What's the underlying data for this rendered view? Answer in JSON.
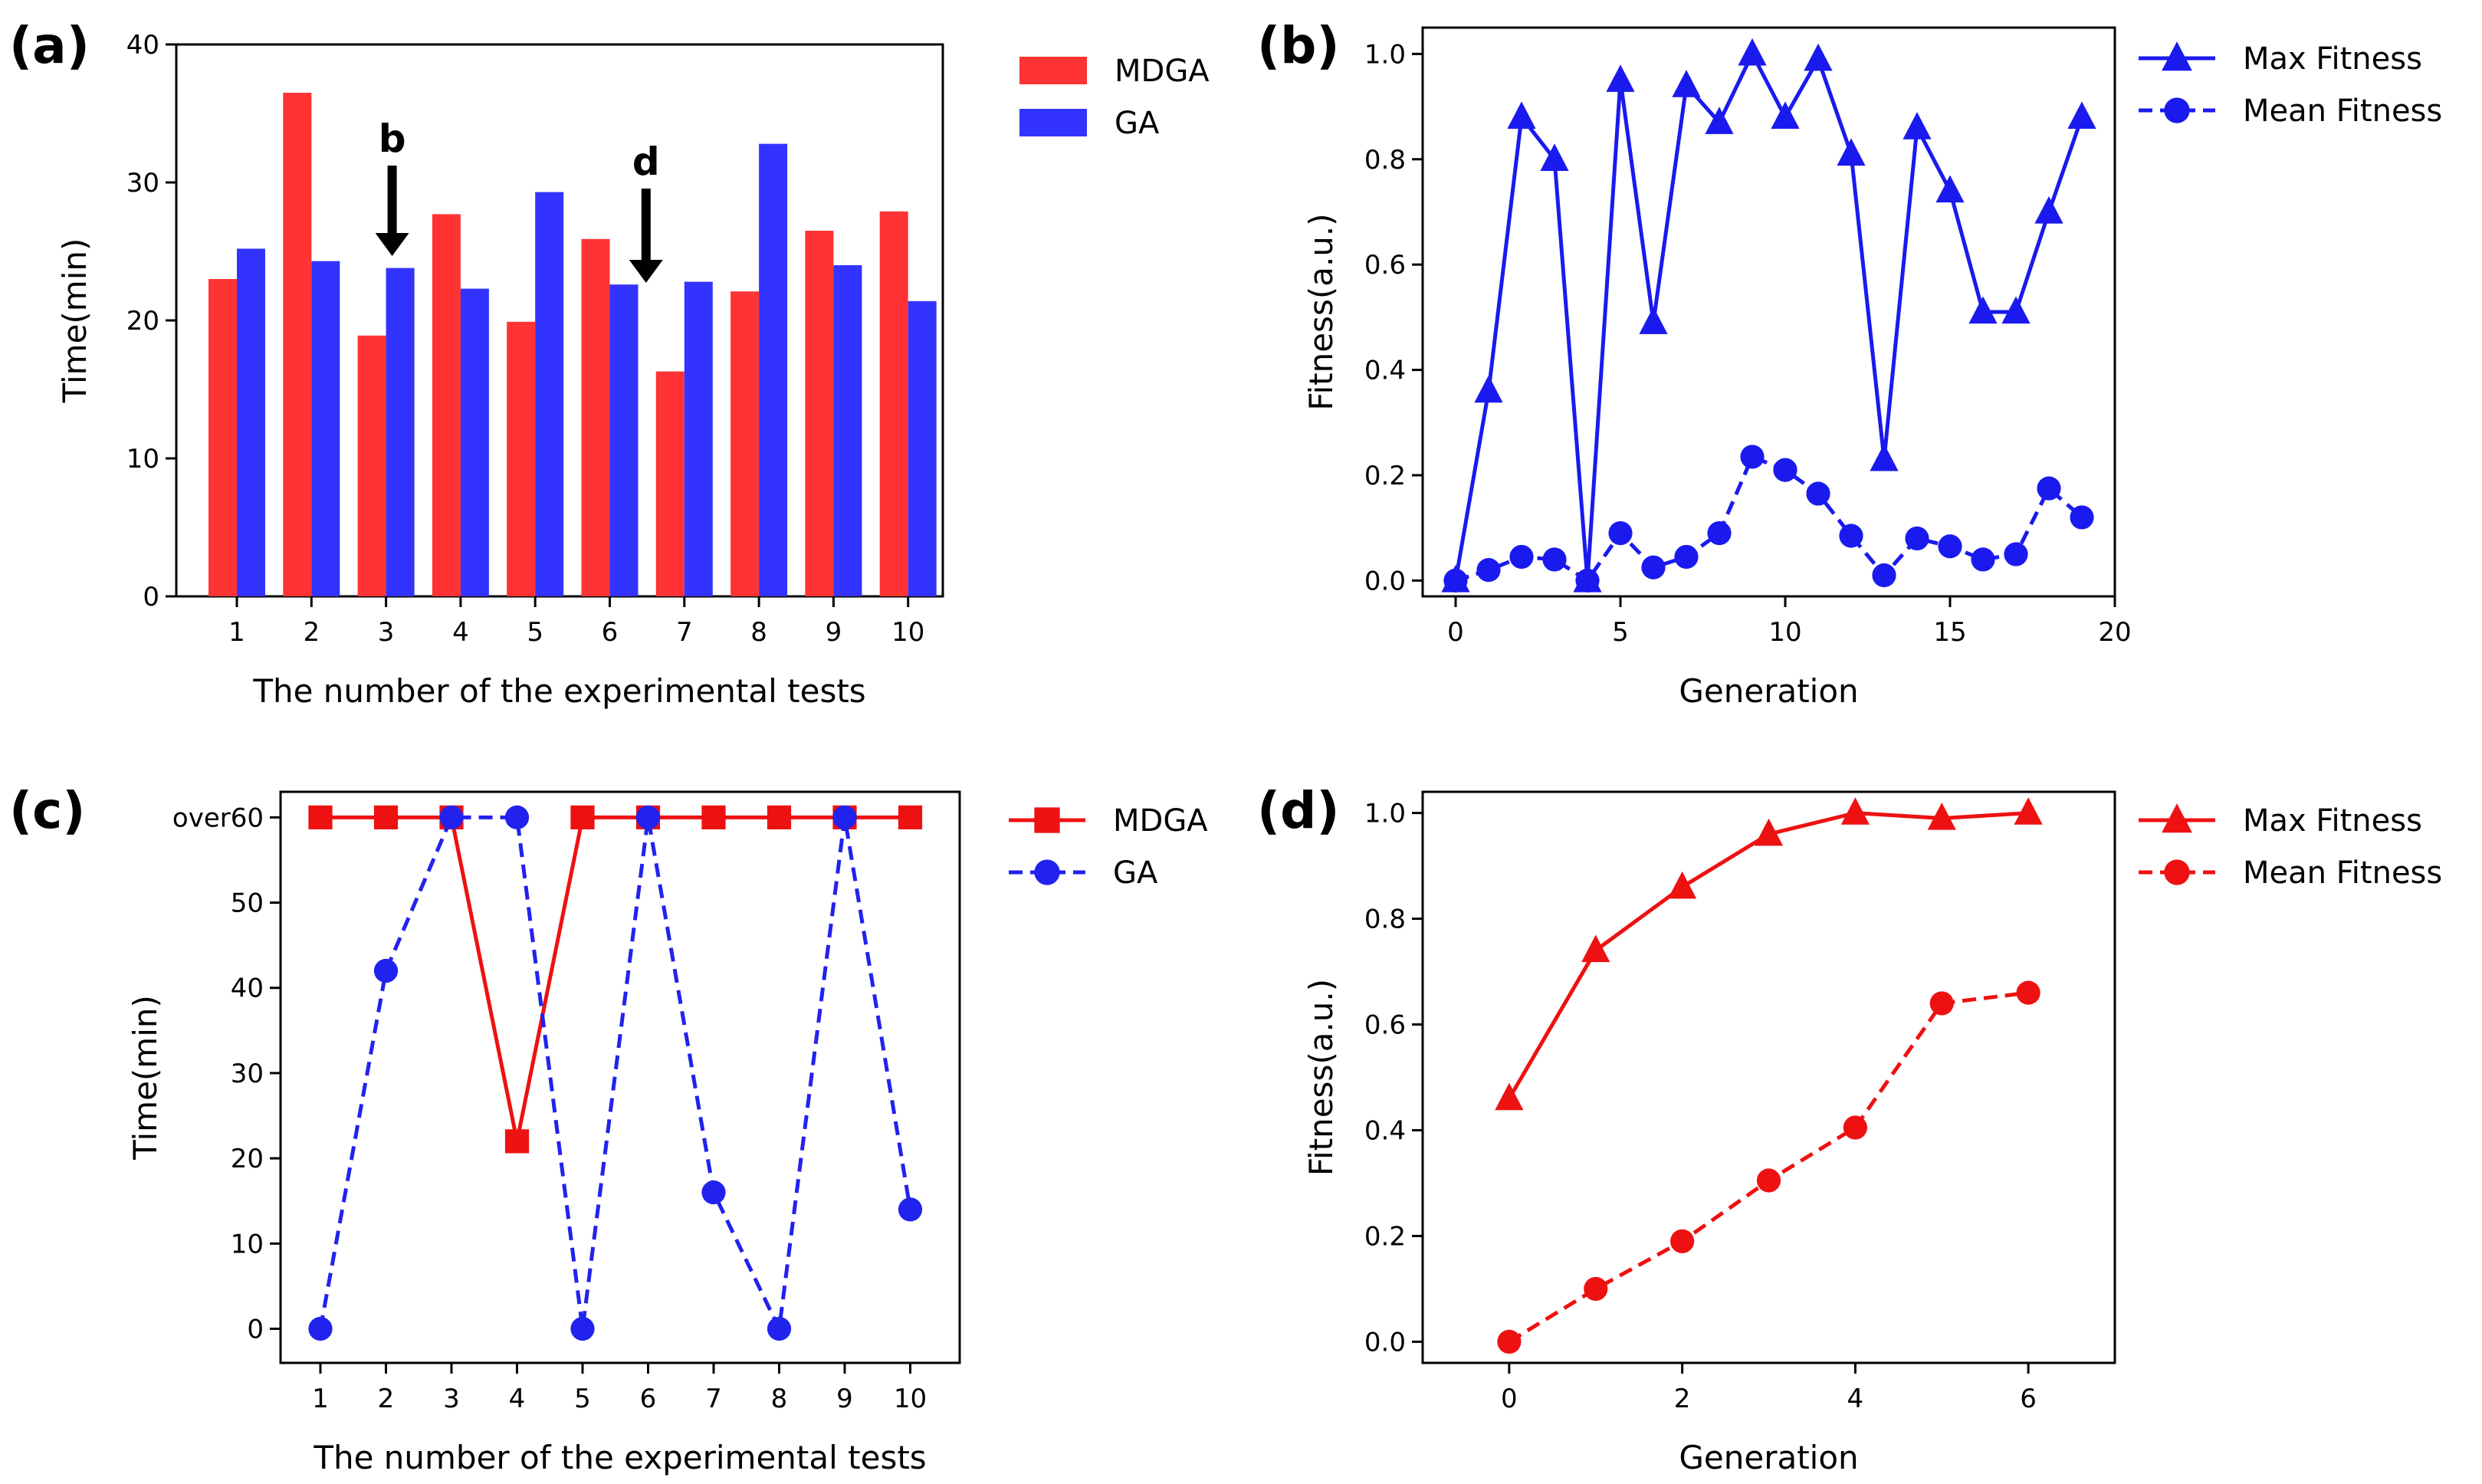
{
  "chart_data": [
    {
      "panel": "(a)",
      "type": "bar",
      "xlabel": "The number of the experimental tests",
      "ylabel": "Time(min)",
      "ylim": [
        0,
        40
      ],
      "yticks": [
        0,
        10,
        20,
        30,
        40
      ],
      "categories": [
        "1",
        "2",
        "3",
        "4",
        "5",
        "6",
        "7",
        "8",
        "9",
        "10"
      ],
      "series": [
        {
          "name": "MDGA",
          "color": "#ff3333",
          "values": [
            23.0,
            36.5,
            18.9,
            27.7,
            19.9,
            25.9,
            16.3,
            22.1,
            26.5,
            27.9
          ]
        },
        {
          "name": "GA",
          "color": "#3333ff",
          "values": [
            25.2,
            24.3,
            23.8,
            22.3,
            29.3,
            22.6,
            22.8,
            32.8,
            24.0,
            21.4
          ]
        }
      ],
      "annotations": [
        {
          "text": "b",
          "category": "3",
          "color": "#3333ff"
        },
        {
          "text": "d",
          "category": "7",
          "color": "#ff2222"
        }
      ],
      "legend": "top-right-outside"
    },
    {
      "panel": "(b)",
      "type": "line",
      "xlabel": "Generation",
      "ylabel": "Fitness(a.u.)",
      "xlim": [
        -1,
        20
      ],
      "ylim": [
        -0.03,
        1.05
      ],
      "xticks": [
        0,
        5,
        10,
        15,
        20
      ],
      "yticks": [
        "0.0",
        "0.2",
        "0.4",
        "0.6",
        "0.8",
        "1.0"
      ],
      "x": [
        0,
        1,
        2,
        3,
        4,
        5,
        6,
        7,
        8,
        9,
        10,
        11,
        12,
        13,
        14,
        15,
        16,
        17,
        18,
        19
      ],
      "series": [
        {
          "name": "Max Fitness",
          "color": "#1a1aee",
          "style": "solid",
          "marker": "triangle",
          "values": [
            0.0,
            0.36,
            0.88,
            0.8,
            0.0,
            0.95,
            0.49,
            0.94,
            0.87,
            1.0,
            0.88,
            0.99,
            0.81,
            0.23,
            0.86,
            0.74,
            0.51,
            0.51,
            0.7,
            0.88
          ]
        },
        {
          "name": "Mean Fitness",
          "color": "#1a1aee",
          "style": "dashed",
          "marker": "circle",
          "values": [
            0.0,
            0.02,
            0.045,
            0.04,
            0.0,
            0.09,
            0.025,
            0.045,
            0.09,
            0.235,
            0.21,
            0.165,
            0.085,
            0.01,
            0.08,
            0.065,
            0.04,
            0.05,
            0.175,
            0.12
          ]
        }
      ],
      "legend": "top-right-outside"
    },
    {
      "panel": "(c)",
      "type": "line",
      "xlabel": "The number of the experimental tests",
      "ylabel": "Time(min)",
      "ylim": [
        -4,
        63
      ],
      "yticks": [
        "0",
        "10",
        "20",
        "30",
        "40",
        "50",
        "over60"
      ],
      "categories": [
        "1",
        "2",
        "3",
        "4",
        "5",
        "6",
        "7",
        "8",
        "9",
        "10"
      ],
      "series": [
        {
          "name": "MDGA",
          "color": "#ee1111",
          "style": "solid",
          "marker": "square",
          "values": [
            60,
            60,
            60,
            22,
            60,
            60,
            60,
            60,
            60,
            60
          ]
        },
        {
          "name": "GA",
          "color": "#2222ee",
          "style": "dashed",
          "marker": "circle",
          "values": [
            0,
            42,
            60,
            60,
            0,
            60,
            16,
            0,
            60,
            14
          ]
        }
      ],
      "legend": "top-right-outside"
    },
    {
      "panel": "(d)",
      "type": "line",
      "xlabel": "Generation",
      "ylabel": "Fitness(a.u.)",
      "xlim": [
        -1,
        7
      ],
      "ylim": [
        -0.04,
        1.04
      ],
      "xticks": [
        0,
        2,
        4,
        6
      ],
      "yticks": [
        "0.0",
        "0.2",
        "0.4",
        "0.6",
        "0.8",
        "1.0"
      ],
      "x": [
        0,
        1,
        2,
        3,
        4,
        5,
        6
      ],
      "series": [
        {
          "name": "Max Fitness",
          "color": "#ee1111",
          "style": "solid",
          "marker": "triangle",
          "values": [
            0.46,
            0.74,
            0.86,
            0.96,
            1.0,
            0.99,
            1.0
          ]
        },
        {
          "name": "Mean Fitness",
          "color": "#ee1111",
          "style": "dashed",
          "marker": "circle",
          "values": [
            0.0,
            0.1,
            0.19,
            0.305,
            0.405,
            0.64,
            0.66
          ]
        }
      ],
      "legend": "top-right-outside"
    }
  ]
}
